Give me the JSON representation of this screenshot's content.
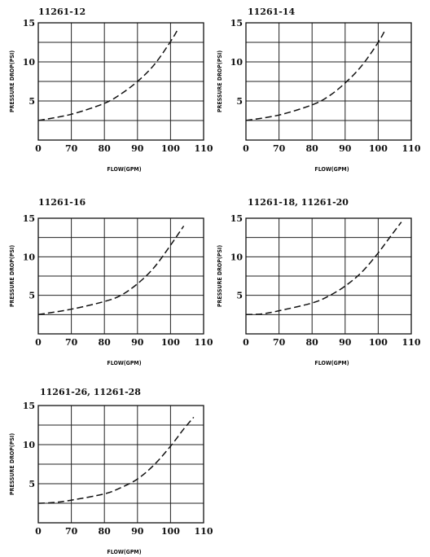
{
  "chart_data": [
    {
      "type": "line",
      "title": "11261-12",
      "xlabel": "FLOW(GPM)",
      "ylabel": "PRESSURE DROP(PSI)",
      "xlim": [
        60,
        110
      ],
      "ylim": [
        0,
        15
      ],
      "xticks": [
        "0",
        "70",
        "80",
        "90",
        "100",
        "110"
      ],
      "yticks": [
        "5",
        "10",
        "15"
      ],
      "grid": true,
      "series": [
        {
          "x": [
            60,
            70,
            80,
            85,
            90,
            95,
            100,
            102
          ],
          "y": [
            2.5,
            3.3,
            4.7,
            5.9,
            7.5,
            9.6,
            12.6,
            14
          ]
        }
      ]
    },
    {
      "type": "line",
      "title": "11261-14",
      "xlabel": "FLOW(GPM)",
      "ylabel": "PRESSURE DROP(PSI)",
      "xlim": [
        60,
        110
      ],
      "ylim": [
        0,
        15
      ],
      "xticks": [
        "0",
        "70",
        "80",
        "90",
        "100",
        "110"
      ],
      "yticks": [
        "5",
        "10",
        "15"
      ],
      "grid": true,
      "series": [
        {
          "x": [
            60,
            70,
            80,
            85,
            90,
            95,
            100,
            102
          ],
          "y": [
            2.5,
            3.2,
            4.5,
            5.6,
            7.3,
            9.5,
            12.5,
            14
          ]
        }
      ]
    },
    {
      "type": "line",
      "title": "11261-16",
      "xlabel": "FLOW(GPM)",
      "ylabel": "PRESSURE DROP(PSI)",
      "xlim": [
        60,
        110
      ],
      "ylim": [
        0,
        15
      ],
      "xticks": [
        "0",
        "70",
        "80",
        "90",
        "100",
        "110"
      ],
      "yticks": [
        "5",
        "10",
        "15"
      ],
      "grid": true,
      "series": [
        {
          "x": [
            60,
            70,
            80,
            85,
            90,
            95,
            100,
            104
          ],
          "y": [
            2.5,
            3.2,
            4.2,
            5.0,
            6.5,
            8.6,
            11.5,
            14
          ]
        }
      ]
    },
    {
      "type": "line",
      "title": "11261-18, 11261-20",
      "xlabel": "FLOW(GPM)",
      "ylabel": "PRESSURE DROP(PSI)",
      "xlim": [
        60,
        110
      ],
      "ylim": [
        0,
        15
      ],
      "xticks": [
        "0",
        "70",
        "80",
        "90",
        "100",
        "110"
      ],
      "yticks": [
        "5",
        "10",
        "15"
      ],
      "grid": true,
      "series": [
        {
          "x": [
            60,
            65,
            70,
            80,
            85,
            90,
            95,
            100,
            104,
            107
          ],
          "y": [
            2.5,
            2.6,
            3.0,
            4.0,
            4.9,
            6.2,
            8.0,
            10.5,
            12.8,
            14.5
          ]
        }
      ]
    },
    {
      "type": "line",
      "title": "11261-26, 11261-28",
      "xlabel": "FLOW(GPM)",
      "ylabel": "PRESSURE DROP(PSI)",
      "xlim": [
        60,
        110
      ],
      "ylim": [
        0,
        15
      ],
      "xticks": [
        "0",
        "70",
        "80",
        "90",
        "100",
        "110"
      ],
      "yticks": [
        "5",
        "10",
        "15"
      ],
      "grid": true,
      "series": [
        {
          "x": [
            60,
            65,
            70,
            80,
            85,
            90,
            95,
            100,
            104,
            107
          ],
          "y": [
            2.5,
            2.6,
            2.9,
            3.7,
            4.5,
            5.6,
            7.4,
            9.8,
            12.0,
            13.5
          ]
        }
      ]
    }
  ]
}
